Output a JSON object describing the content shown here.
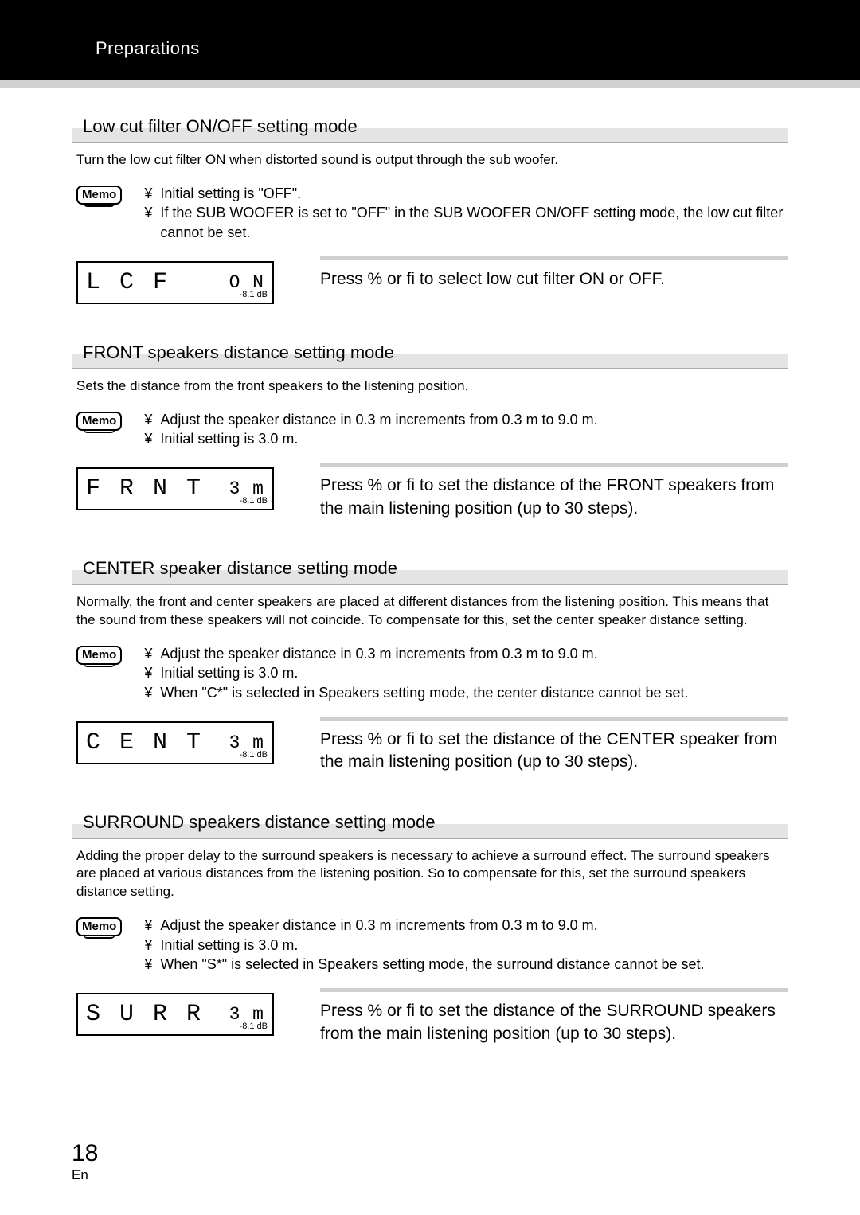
{
  "header": "Preparations",
  "memo_label": "Memo",
  "sections": [
    {
      "title": "Low cut filter ON/OFF setting mode",
      "intro": "Turn the low cut filter ON when distorted sound is output through the sub woofer.",
      "memo": [
        "Initial setting is \"OFF\".",
        "If the SUB WOOFER is set to \"OFF\" in the SUB WOOFER ON/OFF setting mode, the low cut filter cannot be set."
      ],
      "lcd_left": "L C F",
      "lcd_right": "O N",
      "lcd_corner": "-8.1\ndB",
      "instruction": "Press % or ﬁ to select low cut filter ON or OFF."
    },
    {
      "title": "FRONT speakers distance setting mode",
      "intro": "Sets the distance from the front speakers to the listening position.",
      "memo": [
        "Adjust the speaker distance in 0.3 m increments from 0.3 m to 9.0 m.",
        "Initial setting is 3.0 m."
      ],
      "lcd_left": "F R N T",
      "lcd_right": "3 m",
      "lcd_corner": "-8.1\ndB",
      "instruction": "Press % or ﬁ to set the distance of the FRONT speakers from the main listening position (up to 30 steps)."
    },
    {
      "title": "CENTER speaker distance setting mode",
      "intro": "Normally, the front and center speakers are placed at different distances from the listening position. This means that the sound from these speakers will not coincide. To compensate for this, set the center speaker distance setting.",
      "memo": [
        "Adjust the speaker distance in 0.3 m increments from 0.3 m to 9.0 m.",
        "Initial setting is 3.0 m.",
        "When \"C*\" is selected in Speakers setting mode, the center distance cannot be set."
      ],
      "lcd_left": "C E N T",
      "lcd_right": "3 m",
      "lcd_corner": "-8.1\ndB",
      "instruction": "Press % or ﬁ to set the distance of the CENTER speaker from the main listening position (up to 30 steps)."
    },
    {
      "title": "SURROUND speakers distance setting mode",
      "intro": "Adding the proper delay to the surround speakers is necessary to achieve a surround effect. The surround speakers are placed at various distances from the  listening position. So to compensate for this, set the surround speakers distance setting.",
      "memo": [
        "Adjust the speaker distance in 0.3 m increments from 0.3 m to 9.0 m.",
        "Initial setting is 3.0 m.",
        "When \"S*\" is selected in Speakers setting mode, the surround distance cannot be set."
      ],
      "lcd_left": "S U R R",
      "lcd_right": "3 m",
      "lcd_corner": "-8.1\ndB",
      "instruction": "Press  % or ﬁ to set the distance of the SURROUND speakers from the main listening position (up to 30 steps)."
    }
  ],
  "page_number": "18",
  "page_lang": "En",
  "bullet": "¥"
}
